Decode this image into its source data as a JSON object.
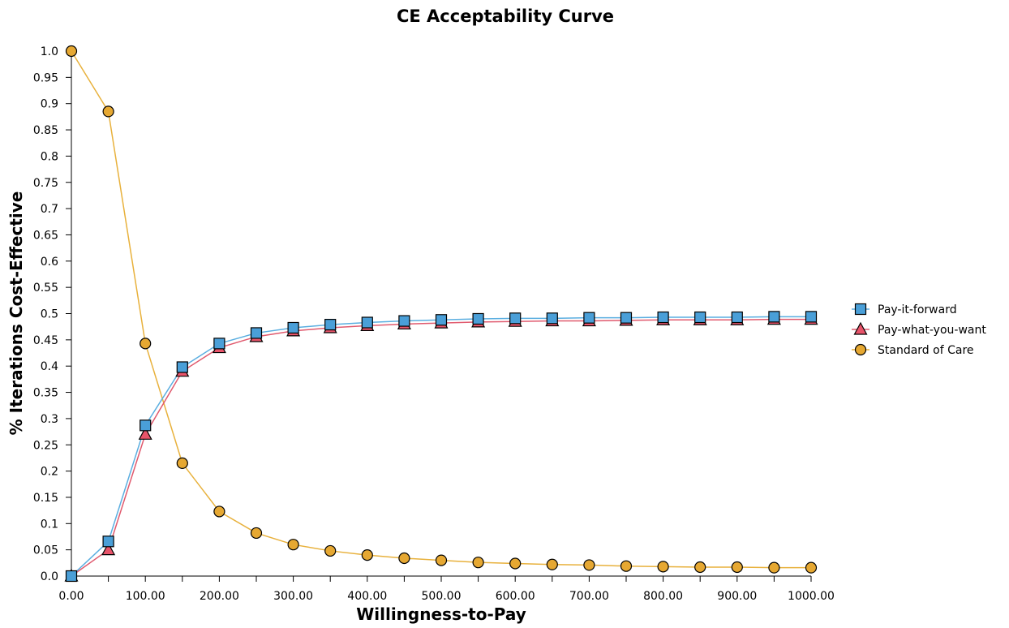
{
  "chart_data": {
    "type": "line",
    "title": "CE Acceptability Curve",
    "xlabel": "Willingness-to-Pay",
    "ylabel": "% Iterations Cost-Effective",
    "x": [
      0,
      50,
      100,
      150,
      200,
      250,
      300,
      350,
      400,
      450,
      500,
      550,
      600,
      650,
      700,
      750,
      800,
      850,
      900,
      950,
      1000
    ],
    "xlim": [
      0,
      1000
    ],
    "ylim": [
      0,
      1.0
    ],
    "x_ticks": [
      0,
      100,
      200,
      300,
      400,
      500,
      600,
      700,
      800,
      900,
      1000
    ],
    "x_tick_labels": [
      "0.00",
      "100.00",
      "200.00",
      "300.00",
      "400.00",
      "500.00",
      "600.00",
      "700.00",
      "800.00",
      "900.00",
      "1000.00"
    ],
    "y_ticks": [
      0,
      0.05,
      0.1,
      0.15,
      0.2,
      0.25,
      0.3,
      0.35,
      0.4,
      0.45,
      0.5,
      0.55,
      0.6,
      0.65,
      0.7,
      0.75,
      0.8,
      0.85,
      0.9,
      0.95,
      1.0
    ],
    "y_tick_labels": [
      "0.0",
      "0.05",
      "0.1",
      "0.15",
      "0.2",
      "0.25",
      "0.3",
      "0.35",
      "0.4",
      "0.45",
      "0.5",
      "0.55",
      "0.6",
      "0.65",
      "0.7",
      "0.75",
      "0.8",
      "0.85",
      "0.9",
      "0.95",
      "1.0"
    ],
    "grid": false,
    "legend_position": "right",
    "series": [
      {
        "name": "Pay-it-forward",
        "marker": "square",
        "color": "#4a9fd8",
        "line_color": "#5aaee0",
        "values": [
          0.0,
          0.066,
          0.287,
          0.398,
          0.443,
          0.463,
          0.473,
          0.479,
          0.483,
          0.486,
          0.488,
          0.49,
          0.491,
          0.491,
          0.492,
          0.492,
          0.493,
          0.493,
          0.493,
          0.494,
          0.494
        ]
      },
      {
        "name": "Pay-what-you-want",
        "marker": "triangle",
        "color": "#e8546a",
        "line_color": "#e05a6e",
        "values": [
          0.0,
          0.05,
          0.27,
          0.39,
          0.435,
          0.456,
          0.467,
          0.473,
          0.477,
          0.48,
          0.482,
          0.484,
          0.485,
          0.486,
          0.486,
          0.487,
          0.488,
          0.488,
          0.488,
          0.489,
          0.489
        ]
      },
      {
        "name": "Standard of Care",
        "marker": "circle",
        "color": "#e6a832",
        "line_color": "#e8b13c",
        "values": [
          1.0,
          0.885,
          0.443,
          0.215,
          0.123,
          0.082,
          0.06,
          0.048,
          0.04,
          0.034,
          0.03,
          0.026,
          0.024,
          0.022,
          0.021,
          0.019,
          0.018,
          0.017,
          0.017,
          0.016,
          0.016
        ]
      }
    ]
  }
}
